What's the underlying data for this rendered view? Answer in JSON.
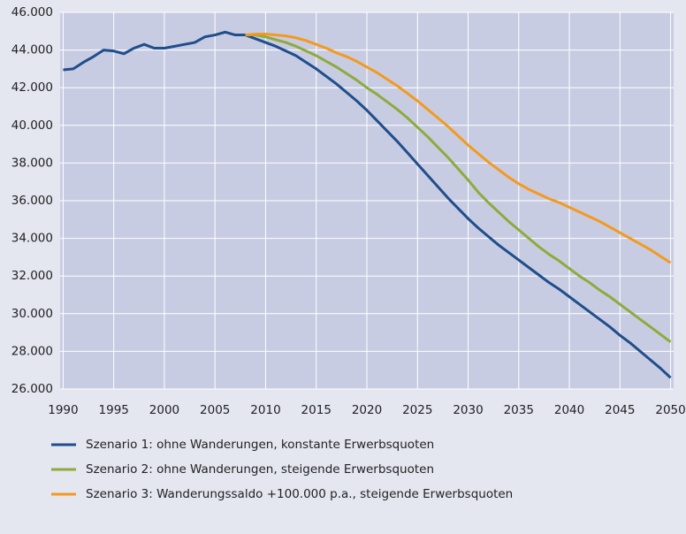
{
  "chart_data": {
    "type": "line",
    "x": [
      1990,
      1991,
      1992,
      1993,
      1994,
      1995,
      1996,
      1997,
      1998,
      1999,
      2000,
      2001,
      2002,
      2003,
      2004,
      2005,
      2006,
      2007,
      2008,
      2009,
      2010,
      2011,
      2012,
      2013,
      2014,
      2015,
      2016,
      2017,
      2018,
      2019,
      2020,
      2021,
      2022,
      2023,
      2024,
      2025,
      2026,
      2027,
      2028,
      2029,
      2030,
      2031,
      2032,
      2033,
      2034,
      2035,
      2036,
      2037,
      2038,
      2039,
      2040,
      2041,
      2042,
      2043,
      2044,
      2045,
      2046,
      2047,
      2048,
      2049,
      2050
    ],
    "series": [
      {
        "name": "Szenario 1: ohne Wanderungen, konstante Erwerbsquoten",
        "color": "#1f4e8c",
        "values": [
          42950,
          43000,
          43350,
          43650,
          44000,
          43950,
          43800,
          44100,
          44300,
          44100,
          44100,
          44200,
          44300,
          44400,
          44700,
          44800,
          44950,
          44800,
          44800,
          44600,
          44400,
          44200,
          43950,
          43700,
          43350,
          43000,
          42600,
          42200,
          41750,
          41300,
          40800,
          40250,
          39700,
          39150,
          38550,
          37950,
          37350,
          36750,
          36150,
          35600,
          35050,
          34550,
          34100,
          33650,
          33250,
          32850,
          32450,
          32050,
          31650,
          31300,
          30900,
          30500,
          30100,
          29700,
          29300,
          28850,
          28450,
          28000,
          27550,
          27100,
          26600
        ]
      },
      {
        "name": "Szenario 2: ohne Wanderungen, steigende Erwerbsquoten",
        "color": "#8faa3c",
        "values": [
          null,
          null,
          null,
          null,
          null,
          null,
          null,
          null,
          null,
          null,
          null,
          null,
          null,
          null,
          null,
          null,
          null,
          null,
          44800,
          44800,
          44700,
          44550,
          44400,
          44200,
          43950,
          43700,
          43400,
          43100,
          42750,
          42400,
          42000,
          41650,
          41250,
          40850,
          40400,
          39900,
          39400,
          38850,
          38300,
          37700,
          37100,
          36450,
          35900,
          35400,
          34900,
          34450,
          34000,
          33550,
          33150,
          32800,
          32400,
          32000,
          31650,
          31250,
          30900,
          30500,
          30100,
          29700,
          29300,
          28900,
          28500
        ]
      },
      {
        "name": "Szenario 3: Wanderungssaldo +100.000 p.a., steigende Erwerbsquoten",
        "color": "#f39a1e",
        "values": [
          null,
          null,
          null,
          null,
          null,
          null,
          null,
          null,
          null,
          null,
          null,
          null,
          null,
          null,
          null,
          null,
          null,
          null,
          44800,
          44850,
          44850,
          44800,
          44750,
          44650,
          44500,
          44300,
          44100,
          43850,
          43650,
          43400,
          43100,
          42800,
          42450,
          42100,
          41700,
          41300,
          40850,
          40400,
          39950,
          39450,
          38950,
          38500,
          38050,
          37650,
          37250,
          36900,
          36600,
          36350,
          36100,
          35900,
          35650,
          35400,
          35150,
          34900,
          34600,
          34300,
          34000,
          33700,
          33400,
          33050,
          32700
        ]
      }
    ],
    "xlim": [
      1989.7,
      2050.3
    ],
    "xticks": [
      1990,
      1995,
      2000,
      2005,
      2010,
      2015,
      2020,
      2025,
      2030,
      2035,
      2040,
      2045,
      2050
    ],
    "ylim": [
      26000,
      46000
    ],
    "yticks": [
      {
        "value": 26000,
        "label": "26.000"
      },
      {
        "value": 28000,
        "label": "28.000"
      },
      {
        "value": 30000,
        "label": "30.000"
      },
      {
        "value": 32000,
        "label": "32.000"
      },
      {
        "value": 34000,
        "label": "34.000"
      },
      {
        "value": 36000,
        "label": "36.000"
      },
      {
        "value": 38000,
        "label": "38.000"
      },
      {
        "value": 40000,
        "label": "40.000"
      },
      {
        "value": 42000,
        "label": "42.000"
      },
      {
        "value": 44000,
        "label": "44.000"
      },
      {
        "value": 46000,
        "label": "46.000"
      }
    ],
    "grid": true
  }
}
